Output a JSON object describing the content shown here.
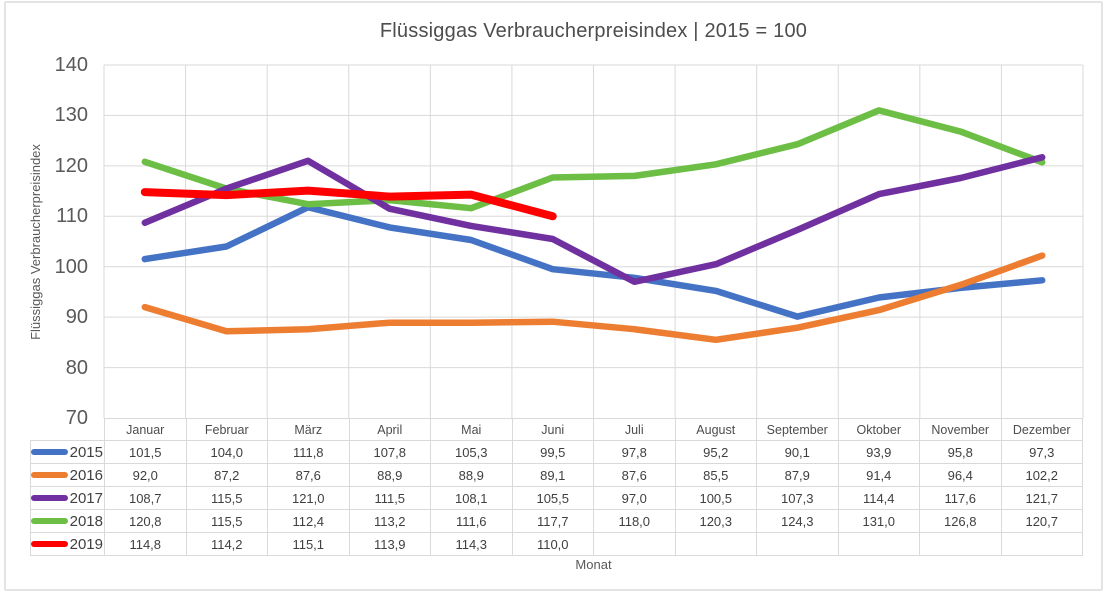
{
  "chart_data": {
    "type": "line",
    "title": "Flüssiggas Verbraucherpreisindex | 2015 = 100",
    "xlabel": "Monat",
    "ylabel": "Flüssiggas Verbraucherpreisindex",
    "ylim": [
      70,
      140
    ],
    "yticks": [
      140,
      130,
      120,
      110,
      100,
      90,
      80,
      70
    ],
    "grid": "both",
    "legend_position": "table-left",
    "decimal_separator": ",",
    "categories": [
      "Januar",
      "Februar",
      "März",
      "April",
      "Mai",
      "Juni",
      "Juli",
      "August",
      "September",
      "Oktober",
      "November",
      "Dezember"
    ],
    "series": [
      {
        "name": "2015",
        "color": "#4472C4",
        "values": [
          101.5,
          104.0,
          111.8,
          107.8,
          105.3,
          99.5,
          97.8,
          95.2,
          90.1,
          93.9,
          95.8,
          97.3
        ]
      },
      {
        "name": "2016",
        "color": "#ED7D31",
        "values": [
          92.0,
          87.2,
          87.6,
          88.9,
          88.9,
          89.1,
          87.6,
          85.5,
          87.9,
          91.4,
          96.4,
          102.2
        ]
      },
      {
        "name": "2017",
        "color": "#7030A0",
        "values": [
          108.7,
          115.5,
          121.0,
          111.5,
          108.1,
          105.5,
          97.0,
          100.5,
          107.3,
          114.4,
          117.6,
          121.7
        ]
      },
      {
        "name": "2018",
        "color": "#6CBE45",
        "values": [
          120.8,
          115.5,
          112.4,
          113.2,
          111.6,
          117.7,
          118.0,
          120.3,
          124.3,
          131.0,
          126.8,
          120.7
        ]
      },
      {
        "name": "2019",
        "color": "#FF0000",
        "values": [
          114.8,
          114.2,
          115.1,
          113.9,
          114.3,
          110.0,
          null,
          null,
          null,
          null,
          null,
          null
        ]
      }
    ],
    "colors": {
      "gridline": "#d9d9d9",
      "axis_text": "#595959",
      "table_text": "#404040"
    }
  }
}
